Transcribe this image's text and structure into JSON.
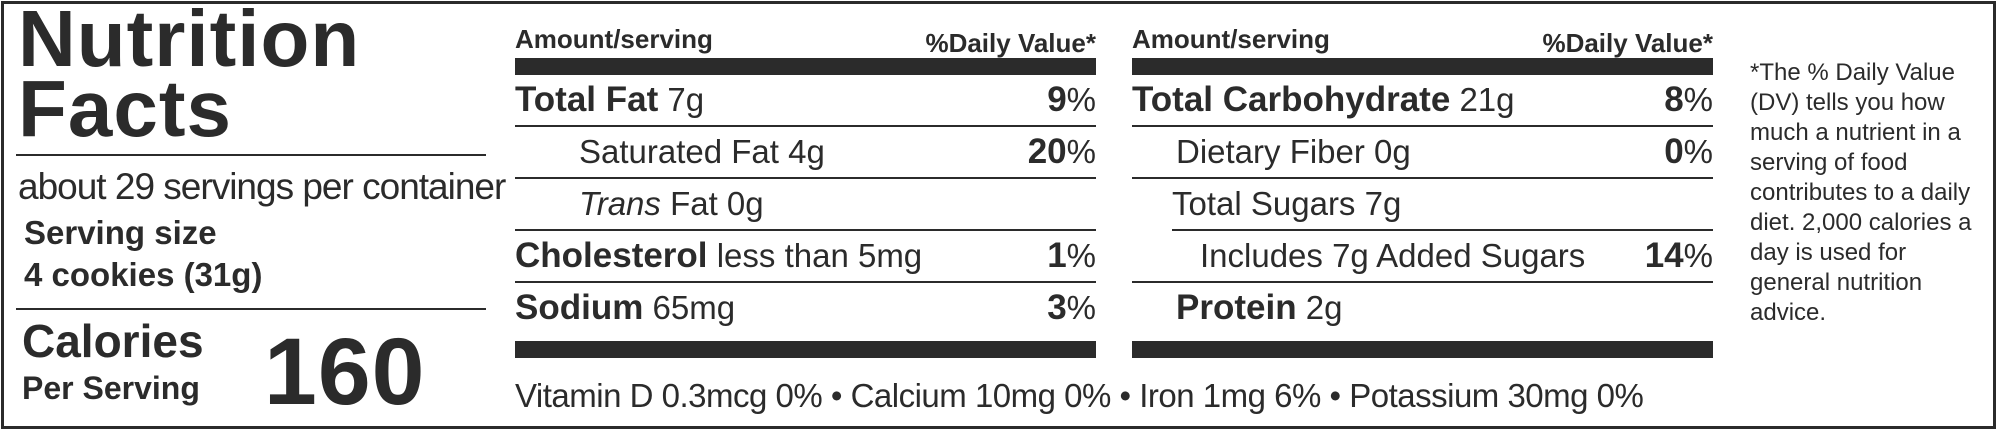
{
  "header": {
    "title_line1": "Nutrition",
    "title_line2": "Facts",
    "servings_per_container": "about 29 servings per container",
    "serving_size_label": "Serving size",
    "serving_size_value": "4 cookies (31g)",
    "calories_label": "Calories",
    "per_serving_label": "Per Serving",
    "calories_value": "160"
  },
  "columns": {
    "amount_header": "Amount/serving",
    "dv_header": "%Daily Value*"
  },
  "left_rows": [
    {
      "name_bold": "Total Fat",
      "amount": " 7g",
      "pct": "9",
      "pct_sign": "%"
    },
    {
      "name": "Saturated Fat 4g",
      "pct": "20",
      "pct_sign": "%"
    },
    {
      "name_italic": "Trans",
      "name": " Fat 0g"
    },
    {
      "name_bold": "Cholesterol",
      "amount": " less than 5mg",
      "pct": "1",
      "pct_sign": "%"
    },
    {
      "name_bold": "Sodium",
      "amount": " 65mg",
      "pct": "3",
      "pct_sign": "%"
    }
  ],
  "right_rows": [
    {
      "name_bold": "Total Carbohydrate",
      "amount": " 21g",
      "pct": "8",
      "pct_sign": "%"
    },
    {
      "name": "Dietary Fiber 0g",
      "pct": "0",
      "pct_sign": "%"
    },
    {
      "name": "Total Sugars 7g"
    },
    {
      "name": "Includes 7g Added Sugars",
      "pct": "14",
      "pct_sign": "%"
    },
    {
      "name_bold": "Protein",
      "amount": " 2g"
    }
  ],
  "vitamins": "Vitamin D 0.3mcg  0% • Calcium 10mg  0% •  Iron 1mg  6% • Potassium 30mg  0%",
  "footnote": "*The % Daily Value (DV) tells you how much a nutrient in a serving of food contributes to a daily diet. 2,000 calories a day is used for general nutrition advice."
}
